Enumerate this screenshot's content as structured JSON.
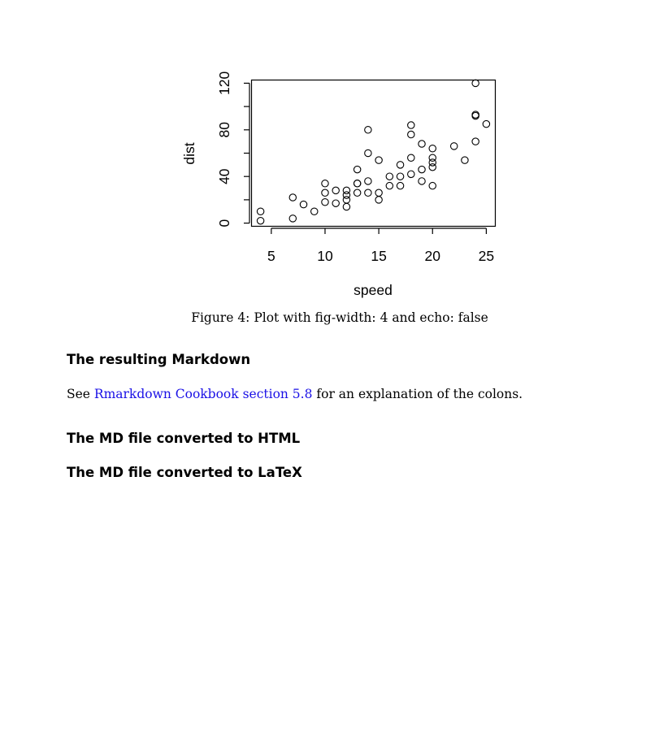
{
  "figure": {
    "caption": "Figure 4: Plot with fig-width: 4 and echo: false"
  },
  "chart_data": {
    "type": "scatter",
    "xlabel": "speed",
    "ylabel": "dist",
    "xticks": [
      5,
      10,
      15,
      20,
      25
    ],
    "yticks": [
      0,
      40,
      80,
      120
    ],
    "xlim": [
      3.16,
      25.84
    ],
    "ylim": [
      -2.72,
      122.72
    ],
    "x": [
      4,
      4,
      7,
      7,
      8,
      9,
      10,
      10,
      10,
      11,
      11,
      12,
      12,
      12,
      12,
      13,
      13,
      13,
      13,
      14,
      14,
      14,
      14,
      15,
      15,
      15,
      16,
      16,
      17,
      17,
      17,
      18,
      18,
      18,
      18,
      19,
      19,
      19,
      20,
      20,
      20,
      20,
      20,
      22,
      23,
      24,
      24,
      24,
      24,
      25
    ],
    "y": [
      2,
      10,
      4,
      22,
      16,
      10,
      18,
      26,
      34,
      17,
      28,
      14,
      20,
      24,
      28,
      26,
      34,
      34,
      46,
      26,
      36,
      60,
      80,
      20,
      26,
      54,
      32,
      40,
      32,
      40,
      50,
      42,
      56,
      76,
      84,
      36,
      46,
      68,
      32,
      48,
      52,
      56,
      64,
      66,
      54,
      70,
      92,
      93,
      120,
      85
    ],
    "grid": false
  },
  "sections": {
    "markdown_heading": "The resulting Markdown",
    "html_heading": "The MD file converted to HTML",
    "latex_heading": "The MD file converted to LaTeX"
  },
  "paragraph": {
    "prefix": "See ",
    "link_text": "Rmarkdown Cookbook section 5.8",
    "suffix": " for an explanation of the colons."
  },
  "colors": {
    "link": "#1a10e6"
  }
}
